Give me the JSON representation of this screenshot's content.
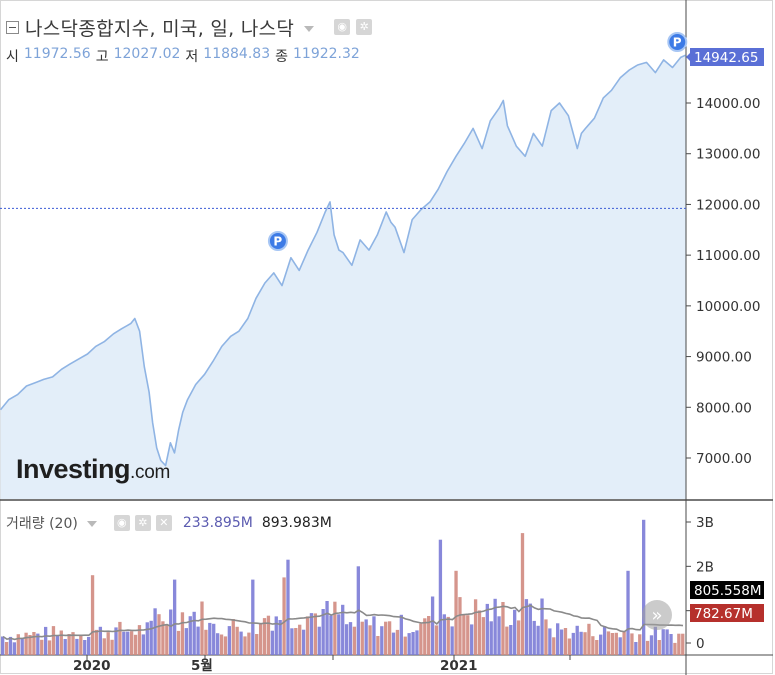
{
  "header": {
    "title": "나스닥종합지수, 미국, 일, 나스닥",
    "ohlc": [
      {
        "label": "시",
        "value": "11972.56"
      },
      {
        "label": "고",
        "value": "12027.02"
      },
      {
        "label": "저",
        "value": "11884.83"
      },
      {
        "label": "종",
        "value": "11922.32"
      }
    ]
  },
  "volume_header": {
    "label": "거래량 (20)",
    "value1": "233.895M",
    "value2": "893.983M"
  },
  "logo": {
    "big": "Investing",
    "small": ".com"
  },
  "icons": {
    "settings": "gear-icon",
    "visibility": "eye-icon",
    "close": "close-icon",
    "scroll": "double-chevron-right-icon",
    "marker": "p-marker-icon"
  },
  "colors": {
    "line": "#8fb4e4",
    "area": "#e3eef9",
    "price_tag": "#5a6fd6",
    "last_volume_tag": "#b6302c",
    "avg_volume_tag": "#000000",
    "vol_up": "#7b7bd6",
    "vol_down": "#d08a80",
    "vol_avg_line": "#8a8a8a",
    "hline": "#3b5bd6"
  },
  "chart_data": [
    {
      "type": "area",
      "title": "나스닥종합지수, 미국, 일, 나스닥",
      "x_range": [
        0,
        100
      ],
      "ylim": [
        6300,
        15500
      ],
      "y_ticks": [
        "7000.00",
        "8000.00",
        "9000.00",
        "10000.00",
        "11000.00",
        "12000.00",
        "13000.00",
        "14000.00"
      ],
      "y_tick_values": [
        7000,
        8000,
        9000,
        10000,
        11000,
        12000,
        13000,
        14000
      ],
      "last_price": "14942.65",
      "last_price_value": 14942.65,
      "horizontal_line_value": 11922.32,
      "markers": [
        {
          "label": "P",
          "x": 40.5,
          "y": 11270
        },
        {
          "label": "P",
          "x": 98.8,
          "y": 15120
        }
      ],
      "x": [
        0,
        1.2,
        2.5,
        3.8,
        5,
        6.3,
        7.6,
        8.9,
        10.1,
        11.4,
        12.7,
        13.9,
        15.2,
        16.5,
        17.7,
        19,
        19.6,
        20.3,
        21,
        21.7,
        22.2,
        22.8,
        23.4,
        24.1,
        24.8,
        25.4,
        26,
        26.6,
        27.3,
        28.5,
        29.8,
        31,
        32.3,
        33.6,
        34.8,
        36.1,
        37.3,
        38.6,
        39.9,
        41.1,
        42.4,
        43.6,
        44.9,
        46.2,
        47.4,
        48.1,
        48.7,
        49.4,
        50,
        51.3,
        52.5,
        53.8,
        55,
        56.3,
        57,
        57.6,
        58.9,
        60.1,
        61.4,
        62.7,
        63.9,
        65.2,
        66.5,
        67.7,
        69,
        70.3,
        71.5,
        72.8,
        73.4,
        74,
        75.3,
        76.6,
        77.8,
        79.1,
        80.4,
        81.6,
        82.9,
        84.2,
        84.8,
        85.4,
        86.7,
        88,
        89.2,
        90.5,
        91.8,
        93,
        94.3,
        95.6,
        96.8,
        98.1,
        99.3,
        100
      ],
      "values": [
        7950,
        8150,
        8250,
        8420,
        8480,
        8550,
        8600,
        8750,
        8850,
        8950,
        9050,
        9200,
        9300,
        9450,
        9550,
        9650,
        9750,
        9500,
        8800,
        8300,
        7700,
        7200,
        6950,
        6850,
        7300,
        7100,
        7550,
        7900,
        8150,
        8450,
        8650,
        8900,
        9200,
        9400,
        9500,
        9750,
        10150,
        10450,
        10650,
        10400,
        10950,
        10700,
        11100,
        11450,
        11850,
        12050,
        11400,
        11100,
        11050,
        10800,
        11300,
        11100,
        11400,
        11850,
        11650,
        11550,
        11050,
        11700,
        11900,
        12050,
        12300,
        12650,
        12950,
        13200,
        13500,
        13100,
        13650,
        13900,
        14050,
        13550,
        13150,
        12950,
        13400,
        13150,
        13850,
        14000,
        13750,
        13100,
        13400,
        13500,
        13700,
        14100,
        14250,
        14500,
        14650,
        14750,
        14800,
        14600,
        14850,
        14700,
        14900,
        14942.65
      ]
    },
    {
      "type": "bar",
      "title": "거래량 (20)",
      "ylim": [
        0,
        3300000000
      ],
      "y_ticks": [
        "0",
        "1B",
        "2B",
        "3B"
      ],
      "y_tick_values": [
        0,
        1000000000,
        2000000000,
        3000000000
      ],
      "last_value_label": "782.67M",
      "last_value": 782670000,
      "avg_value_label": "805.558M",
      "avg_value": 805558000,
      "bar_count": 175,
      "spikes": [
        {
          "index": 23,
          "value": 1800000000,
          "up": false
        },
        {
          "index": 44,
          "value": 1700000000,
          "up": true
        },
        {
          "index": 64,
          "value": 1700000000,
          "up": true
        },
        {
          "index": 73,
          "value": 2150000000,
          "up": true
        },
        {
          "index": 72,
          "value": 1750000000,
          "up": false
        },
        {
          "index": 91,
          "value": 2000000000,
          "up": true
        },
        {
          "index": 112,
          "value": 2600000000,
          "up": true
        },
        {
          "index": 116,
          "value": 1900000000,
          "up": false
        },
        {
          "index": 133,
          "value": 2750000000,
          "up": false
        },
        {
          "index": 160,
          "value": 1900000000,
          "up": true
        },
        {
          "index": 164,
          "value": 3050000000,
          "up": true
        }
      ]
    }
  ],
  "x_axis": {
    "labels": [
      {
        "text": "2020",
        "x": 87
      },
      {
        "text": "5월",
        "x": 205
      },
      {
        "text": "2021",
        "x": 454
      }
    ],
    "tick_positions": [
      87,
      205,
      333,
      454,
      570
    ]
  }
}
